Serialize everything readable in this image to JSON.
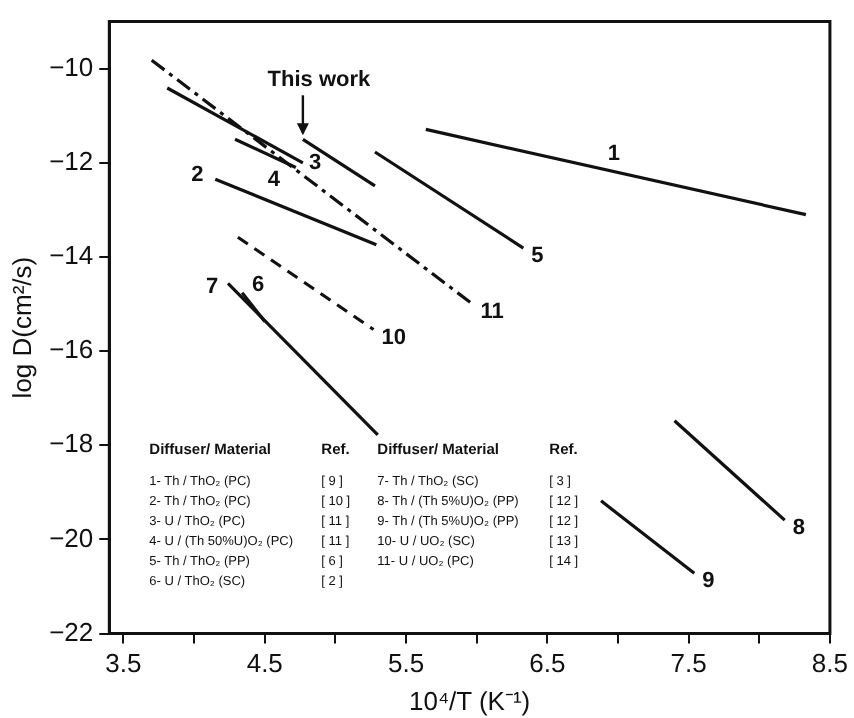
{
  "chart_data": {
    "type": "line",
    "xlabel": "10⁴/T (K⁻¹)",
    "ylabel": "log D(cm²/s)",
    "xlim": [
      3.4,
      8.5
    ],
    "xticks": [
      3.5,
      {
        "value": 4,
        "label": null
      },
      4.5,
      {
        "value": 5,
        "label": null
      },
      5.5,
      {
        "value": 6,
        "label": null
      },
      6.5,
      {
        "value": 7,
        "label": null
      },
      7.5,
      {
        "value": 8,
        "label": null
      },
      8.5
    ],
    "ylim": [
      -22,
      -9
    ],
    "yticks": [
      -22,
      -20,
      -18,
      -16,
      -14,
      -12,
      -10
    ],
    "grid": false,
    "marker": "none",
    "series": [
      {
        "name": "1",
        "color": "#111111",
        "x": [
          5.64,
          8.33
        ],
        "values": [
          -11.29,
          -13.1
        ]
      },
      {
        "name": "2",
        "color": "#111111",
        "x": [
          4.15,
          5.29
        ],
        "values": [
          -12.35,
          -13.74
        ]
      },
      {
        "name": "3",
        "color": "#111111",
        "x": [
          3.81,
          4.77
        ],
        "values": [
          -10.41,
          -12.0
        ]
      },
      {
        "name": "4",
        "color": "#111111",
        "x": [
          4.29,
          4.72
        ],
        "values": [
          -11.5,
          -12.1
        ]
      },
      {
        "name": "5",
        "color": "#111111",
        "x": [
          5.28,
          6.33
        ],
        "values": [
          -11.77,
          -13.81
        ]
      },
      {
        "name": "6",
        "color": "#111111",
        "x": [
          4.34,
          4.5
        ],
        "values": [
          -14.76,
          -15.37
        ]
      },
      {
        "name": "7",
        "color": "#111111",
        "x": [
          4.24,
          5.3
        ],
        "values": [
          -14.56,
          -17.78
        ]
      },
      {
        "name": "8",
        "color": "#111111",
        "x": [
          7.4,
          8.18
        ],
        "values": [
          -17.48,
          -19.59
        ]
      },
      {
        "name": "9",
        "color": "#111111",
        "x": [
          6.88,
          7.54
        ],
        "values": [
          -19.18,
          -20.72
        ]
      },
      {
        "name": "10",
        "color": "#111111",
        "x": [
          4.31,
          5.27
        ],
        "values": [
          -13.58,
          -15.54
        ],
        "line_style": "dashed"
      },
      {
        "name": "11",
        "color": "#111111",
        "x": [
          3.7,
          5.97
        ],
        "values": [
          -9.82,
          -15.0
        ],
        "line_style": "dashdot"
      },
      {
        "color": "#111111",
        "x": [
          4.77,
          5.28
        ],
        "values": [
          -11.5,
          -12.49
        ]
      }
    ],
    "annotations": [
      {
        "text": "This work",
        "x": 4.77,
        "y": -11.5
      },
      "Diffuser/ Material",
      "Ref.",
      "1- Th / ThO₂ (PC)",
      "[ 9 ]",
      "2- Th / ThO₂ (PC)",
      "[ 10 ]",
      "3- U / ThO₂ (PC)",
      "[ 11 ]",
      "4- U / (Th 50%U)O₂ (PC)",
      "[ 11 ]",
      "5- Th / ThO₂ (PP)",
      "[ 6 ]",
      "6- U / ThO₂ (SC)",
      "[ 2 ]",
      "Diffuser/ Material",
      "Ref.",
      "7- Th / ThO₂ (SC)",
      "[ 3 ]",
      "8- Th / (Th 5%U)O₂ (PP)",
      "[ 12 ]",
      "9- Th / (Th 5%U)O₂ (PP)",
      "[ 12 ]",
      "10- U / UO₂ (SC)",
      "[ 13 ]",
      "11- U / UO₂ (PC)",
      "[ 14 ]"
    ]
  }
}
